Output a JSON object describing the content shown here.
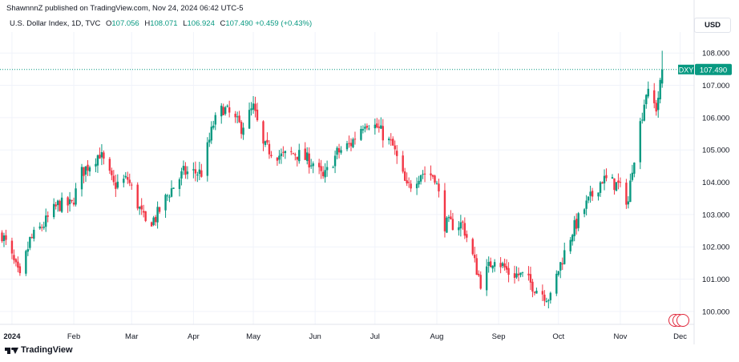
{
  "header": {
    "published": "ShawnnnZ published on TradingView.com, Nov 24, 2024 06:42 UTC-5"
  },
  "legend": {
    "title": "U.S. Dollar Index, 1D, TVC",
    "o_label": "O",
    "o_value": "107.056",
    "h_label": "H",
    "h_value": "108.071",
    "l_label": "L",
    "l_value": "106.924",
    "c_label": "C",
    "c_value": "107.490",
    "change": "+0.459 (+0.43%)"
  },
  "currency": "USD",
  "footer": {
    "brand": "TradingView"
  },
  "colors": {
    "up": "#089981",
    "down": "#f23645",
    "grid": "#f0f3fa",
    "text": "#131722"
  },
  "chart_data": {
    "type": "candlestick",
    "symbol": "DXY",
    "last_price": "107.490",
    "y_ticks": [
      "100.000",
      "101.000",
      "102.000",
      "103.000",
      "104.000",
      "105.000",
      "106.000",
      "107.000",
      "108.000"
    ],
    "ylim": [
      99.6,
      108.65
    ],
    "x_ticks": [
      {
        "label": "2024",
        "date": "2024-01-01"
      },
      {
        "label": "Feb",
        "date": "2024-02-01"
      },
      {
        "label": "Mar",
        "date": "2024-03-01"
      },
      {
        "label": "Apr",
        "date": "2024-04-01"
      },
      {
        "label": "May",
        "date": "2024-05-01"
      },
      {
        "label": "Jun",
        "date": "2024-06-01"
      },
      {
        "label": "Jul",
        "date": "2024-07-01"
      },
      {
        "label": "Aug",
        "date": "2024-08-01"
      },
      {
        "label": "Sep",
        "date": "2024-09-01"
      },
      {
        "label": "Oct",
        "date": "2024-10-01"
      },
      {
        "label": "Nov",
        "date": "2024-11-01"
      },
      {
        "label": "Dec",
        "date": "2024-12-01"
      }
    ],
    "xlim": [
      "2023-12-26",
      "2024-12-08"
    ],
    "close_path": [
      [
        "2023-12-27",
        102.4
      ],
      [
        "2024-01-02",
        101.5
      ],
      [
        "2024-01-05",
        101.0
      ],
      [
        "2024-01-10",
        102.2
      ],
      [
        "2024-01-17",
        102.7
      ],
      [
        "2024-01-24",
        103.3
      ],
      [
        "2024-01-31",
        103.3
      ],
      [
        "2024-02-05",
        104.3
      ],
      [
        "2024-02-14",
        104.9
      ],
      [
        "2024-02-21",
        103.9
      ],
      [
        "2024-02-28",
        104.1
      ],
      [
        "2024-03-08",
        102.7
      ],
      [
        "2024-03-13",
        102.9
      ],
      [
        "2024-03-20",
        103.7
      ],
      [
        "2024-03-27",
        104.3
      ],
      [
        "2024-04-05",
        104.3
      ],
      [
        "2024-04-11",
        105.8
      ],
      [
        "2024-04-16",
        106.3
      ],
      [
        "2024-04-25",
        105.7
      ],
      [
        "2024-05-01",
        106.3
      ],
      [
        "2024-05-06",
        105.1
      ],
      [
        "2024-05-15",
        104.8
      ],
      [
        "2024-05-22",
        104.9
      ],
      [
        "2024-05-31",
        104.6
      ],
      [
        "2024-06-05",
        104.1
      ],
      [
        "2024-06-12",
        104.9
      ],
      [
        "2024-06-19",
        105.2
      ],
      [
        "2024-06-26",
        105.9
      ],
      [
        "2024-07-02",
        105.7
      ],
      [
        "2024-07-10",
        105.1
      ],
      [
        "2024-07-17",
        103.8
      ],
      [
        "2024-07-24",
        104.3
      ],
      [
        "2024-07-31",
        104.2
      ],
      [
        "2024-08-05",
        102.7
      ],
      [
        "2024-08-14",
        102.7
      ],
      [
        "2024-08-23",
        100.9
      ],
      [
        "2024-08-30",
        101.7
      ],
      [
        "2024-09-06",
        101.2
      ],
      [
        "2024-09-13",
        101.1
      ],
      [
        "2024-09-20",
        100.7
      ],
      [
        "2024-09-27",
        100.4
      ],
      [
        "2024-10-01",
        101.3
      ],
      [
        "2024-10-08",
        102.5
      ],
      [
        "2024-10-15",
        103.3
      ],
      [
        "2024-10-23",
        104.1
      ],
      [
        "2024-10-31",
        103.9
      ],
      [
        "2024-11-05",
        103.4
      ],
      [
        "2024-11-07",
        104.5
      ],
      [
        "2024-11-14",
        106.8
      ],
      [
        "2024-11-19",
        106.3
      ],
      [
        "2024-11-21",
        107.0
      ],
      [
        "2024-11-22",
        107.5
      ]
    ],
    "last_candle": {
      "date": "2024-11-22",
      "open": 107.056,
      "high": 108.071,
      "low": 106.924,
      "close": 107.49
    }
  }
}
